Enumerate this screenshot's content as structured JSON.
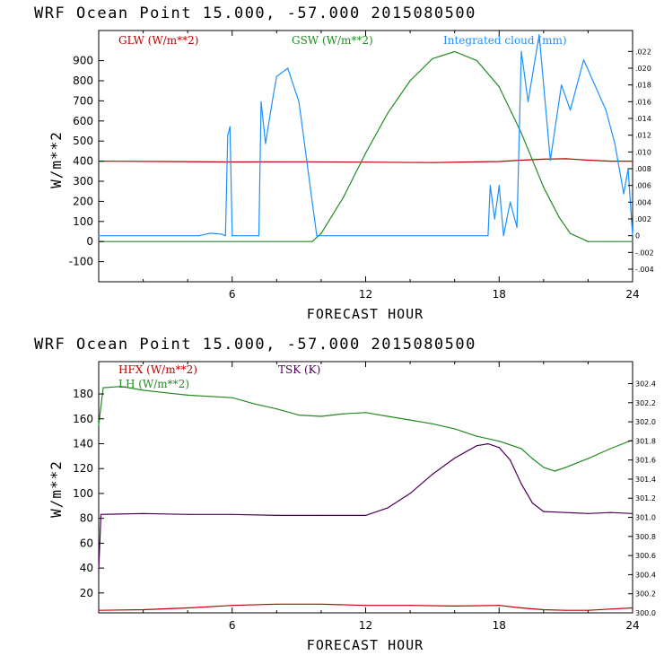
{
  "chart_data": [
    {
      "type": "line",
      "title": "WRF   Ocean Point   15.000, -57.000  2015080500",
      "xlabel": "FORECAST HOUR",
      "ylabel": "W/m**2",
      "xlim": [
        0,
        24
      ],
      "ylim": [
        -200,
        1050
      ],
      "x_ticks": [
        6,
        12,
        18,
        24
      ],
      "y_ticks": [
        -100,
        0,
        100,
        200,
        300,
        400,
        500,
        600,
        700,
        800,
        900
      ],
      "right_axis": {
        "label": "Integrated cloud (mm)",
        "ylim": [
          -0.0055,
          0.0245
        ],
        "ticks": [
          ".022",
          ".020",
          ".018",
          ".016",
          ".014",
          ".012",
          ".010",
          ".008",
          ".006",
          ".004",
          ".002",
          "0",
          "-.002",
          "-.004"
        ],
        "tick_values": [
          0.022,
          0.02,
          0.018,
          0.016,
          0.014,
          0.012,
          0.01,
          0.008,
          0.006,
          0.004,
          0.002,
          0,
          -0.002,
          -0.004
        ]
      },
      "series": [
        {
          "name": "GLW (W/m**2)",
          "color": "#c00000",
          "axis": "left",
          "x": [
            0,
            3,
            6,
            9,
            12,
            15,
            18,
            19,
            20,
            21,
            22,
            23,
            24
          ],
          "y": [
            400,
            398,
            396,
            397,
            395,
            393,
            398,
            405,
            410,
            412,
            405,
            400,
            400
          ]
        },
        {
          "name": "GSW (W/m**2)",
          "color": "#228b22",
          "axis": "left",
          "x": [
            0,
            9.6,
            10,
            11,
            12,
            13,
            14,
            15,
            16,
            17,
            18,
            19,
            20,
            20.7,
            21.2,
            22,
            23,
            24
          ],
          "y": [
            0,
            0,
            40,
            220,
            440,
            640,
            800,
            910,
            945,
            900,
            770,
            540,
            270,
            120,
            40,
            0,
            0,
            0
          ]
        },
        {
          "name": "Integrated cloud (mm)",
          "color": "#1e90ff",
          "axis": "right",
          "x": [
            0,
            4.5,
            5.0,
            5.5,
            5.7,
            5.8,
            5.9,
            6.0,
            6.2,
            7.2,
            7.3,
            7.5,
            7.8,
            8.0,
            8.5,
            9.0,
            9.3,
            9.5,
            9.7,
            9.8,
            17.5,
            17.6,
            17.8,
            18.0,
            18.2,
            18.5,
            18.8,
            19.0,
            19.3,
            19.8,
            20.3,
            20.8,
            21.2,
            21.8,
            22.3,
            22.8,
            23.2,
            23.6,
            23.8,
            24
          ],
          "y": [
            0,
            0,
            0.0003,
            0.0002,
            0,
            0.012,
            0.013,
            0,
            0,
            0,
            0.016,
            0.011,
            0.016,
            0.019,
            0.02,
            0.016,
            0.01,
            0.006,
            0.002,
            0,
            0,
            0.006,
            0.002,
            0.006,
            0,
            0.004,
            0.001,
            0.022,
            0.016,
            0.024,
            0.009,
            0.018,
            0.015,
            0.021,
            0.018,
            0.015,
            0.011,
            0.005,
            0.008,
            0
          ]
        }
      ]
    },
    {
      "type": "line",
      "title": "WRF   Ocean Point   15.000, -57.000  2015080500",
      "xlabel": "FORECAST HOUR",
      "ylabel": "W/m**2",
      "xlim": [
        0,
        24
      ],
      "ylim": [
        4,
        206
      ],
      "x_ticks": [
        6,
        12,
        18,
        24
      ],
      "y_ticks": [
        20,
        40,
        60,
        80,
        100,
        120,
        140,
        160,
        180
      ],
      "right_axis": {
        "label": "TSK (K)",
        "ylim": [
          300.0,
          302.63
        ],
        "ticks": [
          "302.4",
          "302.2",
          "302.0",
          "301.8",
          "301.6",
          "301.4",
          "301.2",
          "301.0",
          "300.8",
          "300.6",
          "300.4",
          "300.2",
          "300.0"
        ],
        "tick_values": [
          302.4,
          302.2,
          302.0,
          301.8,
          301.6,
          301.4,
          301.2,
          301.0,
          300.8,
          300.6,
          300.4,
          300.2,
          300.0
        ]
      },
      "series": [
        {
          "name": "HFX (W/m**2)",
          "color": "#c00000",
          "axis": "left",
          "x": [
            0,
            2,
            4,
            6,
            8,
            10,
            12,
            14,
            16,
            18,
            19,
            20,
            21,
            22,
            23,
            24
          ],
          "y": [
            6,
            6.5,
            8,
            10,
            11,
            11,
            10,
            10,
            9.5,
            10,
            8,
            6.5,
            6,
            6,
            7,
            8
          ]
        },
        {
          "name": "LH (W/m**2)",
          "color": "#228b22",
          "axis": "left",
          "x": [
            0,
            0.2,
            1,
            2,
            3,
            4,
            5,
            6,
            7,
            8,
            9,
            10,
            11,
            12,
            13,
            14,
            15,
            16,
            17,
            18,
            19,
            19.5,
            20,
            20.5,
            21,
            22,
            23,
            24
          ],
          "y": [
            155,
            185,
            186,
            183,
            181,
            179,
            178,
            177,
            172,
            168,
            163,
            162,
            164,
            165,
            162,
            159,
            156,
            152,
            146,
            142,
            136,
            128,
            121,
            118,
            121,
            128,
            136,
            143
          ]
        },
        {
          "name": "TSK (K)",
          "color": "#4b0055",
          "axis": "right",
          "x": [
            0,
            0.1,
            2,
            4,
            6,
            8,
            10,
            12,
            13,
            14,
            15,
            16,
            17,
            17.5,
            18,
            18.5,
            19,
            19.5,
            20,
            21,
            22,
            23,
            24
          ],
          "y": [
            300.45,
            301.03,
            301.04,
            301.03,
            301.03,
            301.02,
            301.02,
            301.02,
            301.1,
            301.25,
            301.45,
            301.62,
            301.75,
            301.77,
            301.73,
            301.6,
            301.35,
            301.15,
            301.06,
            301.05,
            301.04,
            301.05,
            301.04
          ]
        }
      ]
    }
  ]
}
